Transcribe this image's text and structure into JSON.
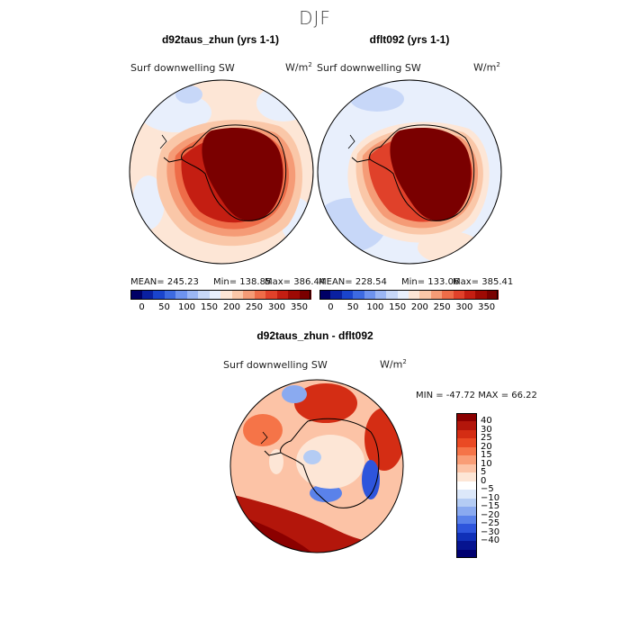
{
  "chart_data": [
    {
      "type": "heatmap",
      "projection": "south-polar-stereographic",
      "title": "d92taus_zhun (yrs 1-1)",
      "field": "Surf downwelling SW",
      "units_base": "W/m",
      "units_exp": "2",
      "stats": {
        "mean": "245.23",
        "min": "138.85",
        "max": "386.44"
      },
      "stats_text": {
        "mean": "MEAN= 245.23",
        "min": "Min= 138.85",
        "max": "Max= 386.44"
      },
      "colorbar": {
        "levels": [
          0,
          50,
          100,
          150,
          200,
          250,
          300,
          350
        ],
        "colors": [
          "#000066",
          "#0a20a0",
          "#1a44cc",
          "#3d6ae0",
          "#6e93ee",
          "#9bb6f4",
          "#c7d7f8",
          "#e8effc",
          "#fde6d6",
          "#fac7a8",
          "#f59b76",
          "#ee6c48",
          "#e0412a",
          "#c41e12",
          "#9e0a04",
          "#7a0000"
        ]
      }
    },
    {
      "type": "heatmap",
      "projection": "south-polar-stereographic",
      "title": "dflt092 (yrs 1-1)",
      "field": "Surf downwelling SW",
      "units_base": "W/m",
      "units_exp": "2",
      "stats": {
        "mean": "228.54",
        "min": "133.06",
        "max": "385.41"
      },
      "stats_text": {
        "mean": "MEAN= 228.54",
        "min": "Min= 133.06",
        "max": "Max= 385.41"
      },
      "colorbar": {
        "levels": [
          0,
          50,
          100,
          150,
          200,
          250,
          300,
          350
        ],
        "colors": [
          "#000066",
          "#0a20a0",
          "#1a44cc",
          "#3d6ae0",
          "#6e93ee",
          "#9bb6f4",
          "#c7d7f8",
          "#e8effc",
          "#fde6d6",
          "#fac7a8",
          "#f59b76",
          "#ee6c48",
          "#e0412a",
          "#c41e12",
          "#9e0a04",
          "#7a0000"
        ]
      }
    },
    {
      "type": "heatmap",
      "projection": "south-polar-stereographic",
      "title": "d92taus_zhun - dflt092",
      "field": "Surf downwelling SW",
      "units_base": "W/m",
      "units_exp": "2",
      "stats": {
        "min": "-47.72",
        "max": "66.22"
      },
      "stats_text": "MIN = -47.72 MAX =  66.22",
      "colorbar": {
        "levels": [
          "40",
          "30",
          "25",
          "20",
          "15",
          "10",
          "5",
          "0",
          "-5",
          "-10",
          "-15",
          "-20",
          "-25",
          "-30",
          "-40"
        ],
        "level_labels": [
          "40",
          "30",
          "25",
          "20",
          "15",
          "10",
          "5",
          "0",
          "−5",
          "−10",
          "−15",
          "−20",
          "−25",
          "−30",
          "−40"
        ],
        "colors": [
          "#8b0000",
          "#b3160b",
          "#d42d14",
          "#ea4a24",
          "#f57448",
          "#f99d76",
          "#fcc3a6",
          "#fde6d6",
          "#ffffff",
          "#dce8fa",
          "#b4ccf4",
          "#8aaaf0",
          "#5a82ea",
          "#2e55dc",
          "#1030b8",
          "#061490",
          "#000070"
        ]
      }
    }
  ],
  "header": {
    "season": "DJF"
  }
}
